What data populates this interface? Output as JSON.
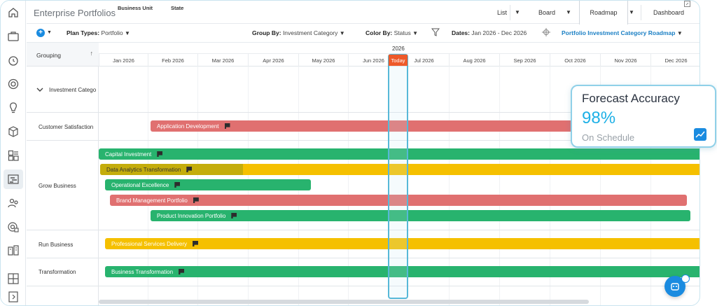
{
  "header": {
    "title": "Enterprise Portfolios",
    "filters": [
      "Business Unit",
      "State"
    ],
    "views": [
      "List",
      "Board",
      "Roadmap",
      "Dashboard"
    ],
    "active_view": "Roadmap"
  },
  "toolbar": {
    "plan_types_label": "Plan Types:",
    "plan_types_value": "Portfolio",
    "group_by_label": "Group By:",
    "group_by_value": "Investment Category",
    "color_by_label": "Color By:",
    "color_by_value": "Status",
    "dates_label": "Dates:",
    "dates_value": "Jan 2026 - Dec 2026",
    "saved_view": "Portfolio Investment Category Roadmap"
  },
  "grid": {
    "grouping_header": "Grouping",
    "year": "2026",
    "today_label": "Today",
    "months": [
      "Jan 2026",
      "Feb 2026",
      "Mar 2026",
      "Apr 2026",
      "May 2026",
      "Jun 2026",
      "Jul 2026",
      "Aug 2026",
      "Sep 2026",
      "Oct 2026",
      "Nov 2026",
      "Dec 2026"
    ],
    "top_group": "Investment Catego",
    "groups": [
      "Customer Satisfaction",
      "Grow Business",
      "Run Business",
      "Transformation"
    ]
  },
  "bars": [
    {
      "label": "Application Development",
      "status": "red",
      "group": "Customer Satisfaction"
    },
    {
      "label": "Capital Investment",
      "status": "green",
      "group": "Grow Business"
    },
    {
      "label": "Data Analytics Transformation",
      "status": "yellow",
      "group": "Grow Business",
      "progress": 0.2
    },
    {
      "label": "Operational Excellence",
      "status": "green",
      "group": "Grow Business"
    },
    {
      "label": "Brand Management Portfolio",
      "status": "red",
      "group": "Grow Business"
    },
    {
      "label": "Product Innovation Portfolio",
      "status": "green",
      "group": "Grow Business"
    },
    {
      "label": "Professional Services Delivery",
      "status": "yellow",
      "group": "Run Business"
    },
    {
      "label": "Business Transformation",
      "status": "green",
      "group": "Transformation"
    }
  ],
  "card": {
    "title": "Forecast Accuracy",
    "value": "98%",
    "subtitle": "On Schedule"
  },
  "colors": {
    "red": "#e07070",
    "green": "#28b36e",
    "yellow": "#f5c000",
    "today": "#ee5a2a",
    "accent": "#1a8be0"
  }
}
